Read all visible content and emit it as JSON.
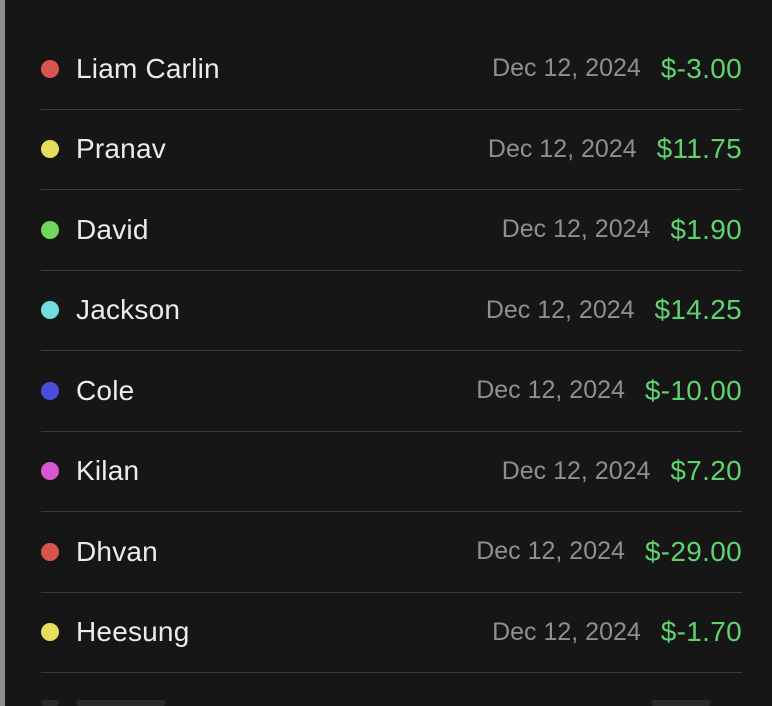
{
  "transactions": [
    {
      "name": "Liam Carlin",
      "date": "Dec 12, 2024",
      "amount": "$-3.00",
      "color": "#d9544f"
    },
    {
      "name": "Pranav",
      "date": "Dec 12, 2024",
      "amount": "$11.75",
      "color": "#e6dd5f"
    },
    {
      "name": "David",
      "date": "Dec 12, 2024",
      "amount": "$1.90",
      "color": "#6fd65e"
    },
    {
      "name": "Jackson",
      "date": "Dec 12, 2024",
      "amount": "$14.25",
      "color": "#72dcdf"
    },
    {
      "name": "Cole",
      "date": "Dec 12, 2024",
      "amount": "$-10.00",
      "color": "#4a4fd9"
    },
    {
      "name": "Kilan",
      "date": "Dec 12, 2024",
      "amount": "$7.20",
      "color": "#d956d2"
    },
    {
      "name": "Dhvan",
      "date": "Dec 12, 2024",
      "amount": "$-29.00",
      "color": "#d9544f"
    },
    {
      "name": "Heesung",
      "date": "Dec 12, 2024",
      "amount": "$-1.70",
      "color": "#e6dd5f"
    }
  ],
  "colors": {
    "background": "#161616",
    "amount": "#5fd36f",
    "date": "#8f8f8f",
    "name": "#ececec",
    "divider": "#3a3a3a"
  }
}
